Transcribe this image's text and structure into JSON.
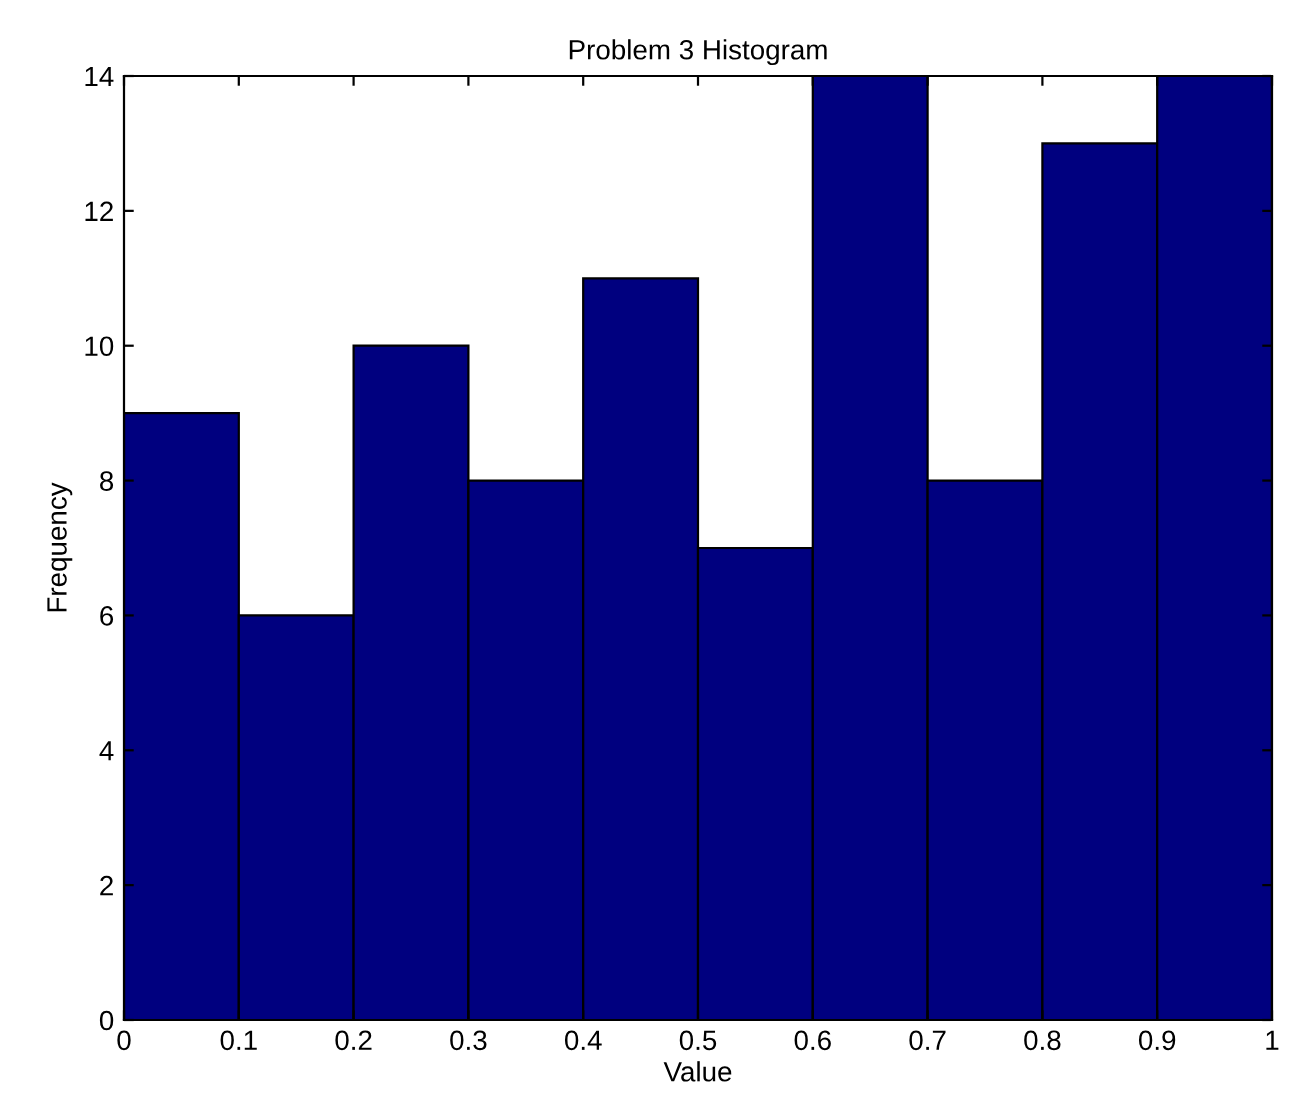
{
  "chart_data": {
    "type": "histogram",
    "title": "Problem 3 Histogram",
    "xlabel": "Value",
    "ylabel": "Frequency",
    "bins": [
      0,
      0.1,
      0.2,
      0.3,
      0.4,
      0.5,
      0.6,
      0.7,
      0.8,
      0.9,
      1
    ],
    "values": [
      9,
      6,
      10,
      8,
      11,
      7,
      14,
      8,
      13,
      14
    ],
    "color": "#00007f",
    "xlim": [
      0,
      1
    ],
    "xticks": [
      0,
      0.1,
      0.2,
      0.3,
      0.4,
      0.5,
      0.6,
      0.7,
      0.8,
      0.9,
      1
    ],
    "ylim": [
      0,
      14
    ],
    "yticks": [
      0,
      2,
      4,
      6,
      8,
      10,
      12,
      14
    ],
    "grid": false
  }
}
